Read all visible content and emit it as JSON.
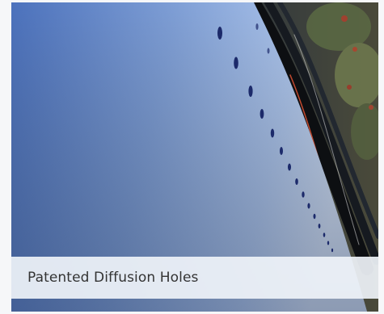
{
  "caption": {
    "text": "Patented Diffusion Holes"
  },
  "image": {
    "subject": "diffusion-tube-photo",
    "colors": {
      "tube_light": "#a9c2ea",
      "tube_dark": "#3f63b0",
      "background_dark": "#1c2430",
      "caption_bg": "#eff3f8",
      "caption_text": "#333333"
    }
  }
}
